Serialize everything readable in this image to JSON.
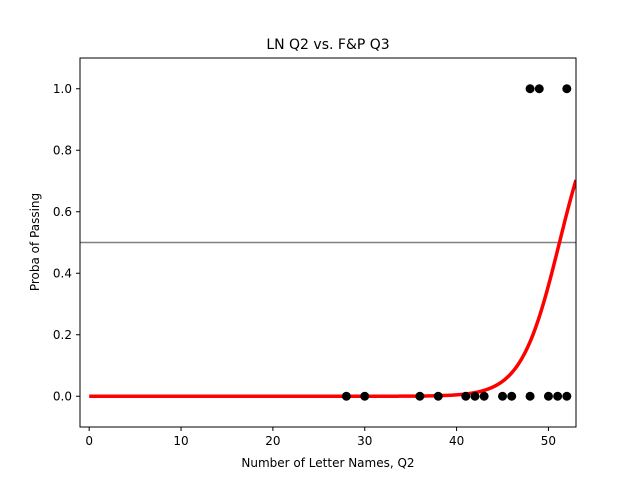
{
  "chart_data": {
    "type": "scatter",
    "title": "LN Q2 vs. F&P Q3",
    "xlabel": "Number of Letter Names, Q2",
    "ylabel": "Proba of Passing",
    "xlim": [
      -1,
      53
    ],
    "ylim": [
      -0.1,
      1.1
    ],
    "xticks": [
      0,
      10,
      20,
      30,
      40,
      50
    ],
    "xtick_labels": [
      "0",
      "10",
      "20",
      "30",
      "40",
      "50"
    ],
    "yticks": [
      0.0,
      0.2,
      0.4,
      0.6,
      0.8,
      1.0
    ],
    "ytick_labels": [
      "0.0",
      "0.2",
      "0.4",
      "0.6",
      "0.8",
      "1.0"
    ],
    "grid": false,
    "series": [
      {
        "kind": "scatter",
        "color": "#000000",
        "points": [
          [
            28,
            0
          ],
          [
            30,
            0
          ],
          [
            36,
            0
          ],
          [
            38,
            0
          ],
          [
            41,
            0
          ],
          [
            42,
            0
          ],
          [
            43,
            0
          ],
          [
            45,
            0
          ],
          [
            46,
            0
          ],
          [
            48,
            0
          ],
          [
            50,
            0
          ],
          [
            51,
            0
          ],
          [
            52,
            0
          ],
          [
            48,
            1
          ],
          [
            49,
            1
          ],
          [
            52,
            1
          ]
        ]
      },
      {
        "kind": "logistic-curve",
        "color": "#ff0000",
        "x_range": [
          0,
          53
        ],
        "midpoint": 51.2,
        "slope": 0.48
      },
      {
        "kind": "hline",
        "color": "#808080",
        "y": 0.5
      }
    ]
  }
}
